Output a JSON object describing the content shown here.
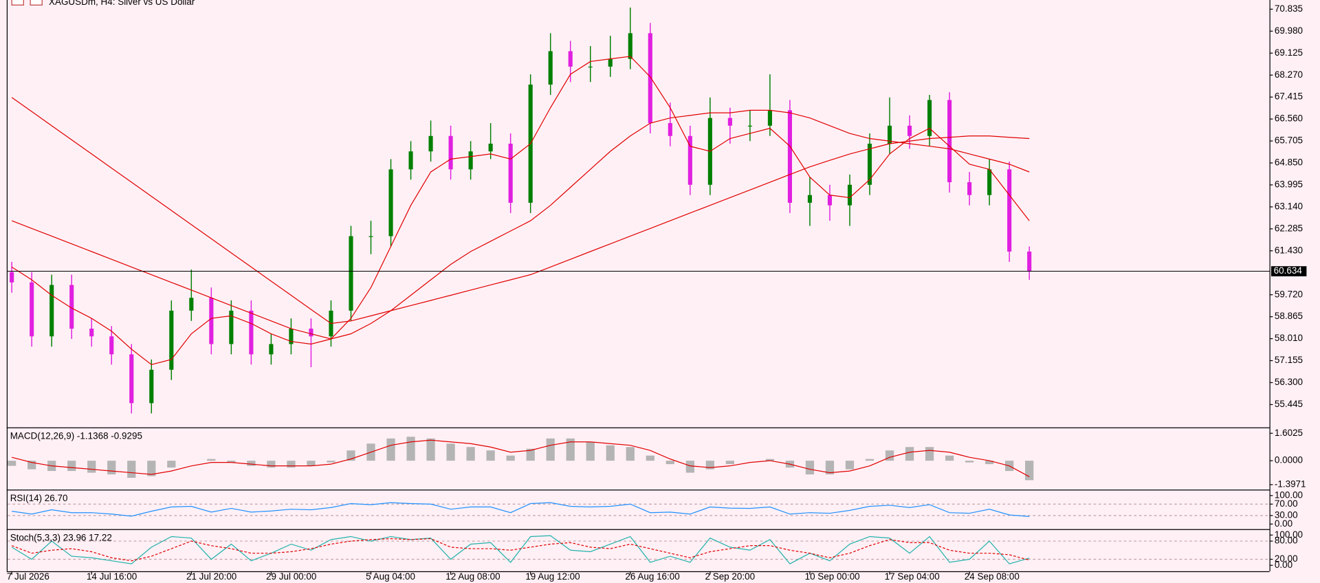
{
  "chart_data": [
    {
      "type": "candlestick",
      "title": "XAGUSDm, H4:  Silver vs US Dollar",
      "categories": [
        "7 Jul 2026",
        null,
        null,
        null,
        "14 Jul 16:00",
        null,
        null,
        null,
        null,
        "21 Jul 20:00",
        null,
        null,
        null,
        "29 Jul 00:00",
        null,
        null,
        null,
        null,
        "5 Aug 04:00",
        null,
        null,
        null,
        "12 Aug 08:00",
        null,
        null,
        null,
        "19 Aug 12:00",
        null,
        null,
        null,
        null,
        "26 Aug 16:00",
        null,
        null,
        null,
        "2 Sep 20:00",
        null,
        null,
        null,
        null,
        "10 Sep 00:00",
        null,
        null,
        null,
        "17 Sep 04:00",
        null,
        null,
        null,
        "24 Sep 08:00",
        null,
        null,
        null
      ],
      "open": [
        60.6,
        60.2,
        58.1,
        60.1,
        58.4,
        58.1,
        57.4,
        55.5,
        56.8,
        59.1,
        59.6,
        57.8,
        59.1,
        57.4,
        57.8,
        58.4,
        58.1,
        59.1,
        62.0,
        62.0,
        64.6,
        65.3,
        65.9,
        64.6,
        65.3,
        65.6,
        63.3,
        67.9,
        69.2,
        68.6,
        68.6,
        68.9,
        69.9,
        66.4,
        65.9,
        64.0,
        66.6,
        66.3,
        66.3,
        66.9,
        63.3,
        63.6,
        63.2,
        64.0,
        65.6,
        66.3,
        65.9,
        67.3,
        64.1,
        63.6,
        64.6,
        61.4
      ],
      "high": [
        61.0,
        60.6,
        60.5,
        60.5,
        58.8,
        58.5,
        57.8,
        57.2,
        59.5,
        60.7,
        60.0,
        59.5,
        59.5,
        58.2,
        58.8,
        58.8,
        59.5,
        62.4,
        62.6,
        65.0,
        65.7,
        66.5,
        66.3,
        65.7,
        66.4,
        66.0,
        68.3,
        69.9,
        69.6,
        69.4,
        69.8,
        70.9,
        70.3,
        67.2,
        66.3,
        67.4,
        67.0,
        66.9,
        68.3,
        67.3,
        64.3,
        64.0,
        64.4,
        66.0,
        67.4,
        66.7,
        67.5,
        67.6,
        64.5,
        65.0,
        64.9,
        61.6
      ],
      "low": [
        59.8,
        57.7,
        57.7,
        58.0,
        57.7,
        57.0,
        55.1,
        55.1,
        56.4,
        58.7,
        57.4,
        57.4,
        57.0,
        57.0,
        57.4,
        56.9,
        57.7,
        58.7,
        61.3,
        61.6,
        64.2,
        64.9,
        64.2,
        64.2,
        65.0,
        62.9,
        62.9,
        67.5,
        68.0,
        68.0,
        68.2,
        68.5,
        66.0,
        65.5,
        63.6,
        63.6,
        65.6,
        65.7,
        65.9,
        62.9,
        62.4,
        62.6,
        62.4,
        63.6,
        65.2,
        65.4,
        65.5,
        63.7,
        63.2,
        63.2,
        61.0,
        60.3
      ],
      "close": [
        60.2,
        58.1,
        60.1,
        58.4,
        58.1,
        57.4,
        55.5,
        56.8,
        59.1,
        59.6,
        57.8,
        59.1,
        57.4,
        57.8,
        58.4,
        58.1,
        59.1,
        62.0,
        62.0,
        64.6,
        65.3,
        65.9,
        64.6,
        65.3,
        65.6,
        63.3,
        67.9,
        69.2,
        68.6,
        68.6,
        68.9,
        69.9,
        66.4,
        65.9,
        64.0,
        66.6,
        66.3,
        66.3,
        66.9,
        63.3,
        63.6,
        63.2,
        64.0,
        65.6,
        66.3,
        65.9,
        67.3,
        64.1,
        63.6,
        64.6,
        61.4,
        60.634
      ],
      "up_color": "#008000",
      "down_color": "#e020e0",
      "overlays": [
        {
          "color": "#e00000",
          "values": [
            60.8,
            60.3,
            59.7,
            59.2,
            58.8,
            58.3,
            57.6,
            57.0,
            57.2,
            58.2,
            58.8,
            58.9,
            58.6,
            58.2,
            57.9,
            57.8,
            58.0,
            58.8,
            60.0,
            61.6,
            63.2,
            64.5,
            65.0,
            65.1,
            65.2,
            65.0,
            65.6,
            67.0,
            68.3,
            68.8,
            68.9,
            69.0,
            68.2,
            67.0,
            65.5,
            65.3,
            65.8,
            66.0,
            66.2,
            65.5,
            64.3,
            63.6,
            63.5,
            64.2,
            65.2,
            65.8,
            66.2,
            65.5,
            64.8,
            64.6,
            63.6,
            62.6
          ]
        },
        {
          "color": "#e00000",
          "values": [
            62.6,
            62.3,
            62.0,
            61.7,
            61.4,
            61.1,
            60.8,
            60.5,
            60.2,
            59.9,
            59.6,
            59.3,
            59.0,
            58.7,
            58.4,
            58.2,
            58.0,
            58.2,
            58.6,
            59.1,
            59.7,
            60.3,
            60.9,
            61.4,
            61.8,
            62.2,
            62.6,
            63.2,
            63.9,
            64.6,
            65.3,
            65.9,
            66.4,
            66.6,
            66.7,
            66.8,
            66.8,
            66.9,
            66.9,
            66.8,
            66.6,
            66.3,
            66.0,
            65.8,
            65.7,
            65.6,
            65.5,
            65.4,
            65.2,
            65.0,
            64.8,
            64.5
          ]
        },
        {
          "color": "#e00000",
          "values": [
            67.4,
            66.85,
            66.3,
            65.75,
            65.2,
            64.65,
            64.1,
            63.55,
            63.0,
            62.45,
            61.9,
            61.35,
            60.8,
            60.25,
            59.7,
            59.15,
            58.6,
            58.7,
            58.9,
            59.1,
            59.3,
            59.5,
            59.7,
            59.9,
            60.1,
            60.3,
            60.5,
            60.8,
            61.1,
            61.4,
            61.7,
            62.0,
            62.3,
            62.6,
            62.9,
            63.2,
            63.5,
            63.8,
            64.1,
            64.4,
            64.7,
            64.95,
            65.2,
            65.4,
            65.6,
            65.7,
            65.8,
            65.85,
            65.9,
            65.9,
            65.85,
            65.8
          ]
        }
      ],
      "current_price": 60.634,
      "ylim": [
        54.59,
        71.16
      ],
      "yticks": [
        70.835,
        {
          "value": 69.98,
          "label": "69.980"
        },
        69.125,
        {
          "value": 68.27,
          "label": "68.270"
        },
        67.415,
        {
          "value": 66.56,
          "label": "66.560"
        },
        65.705,
        {
          "value": 64.85,
          "label": "64.850"
        },
        63.995,
        {
          "value": 63.14,
          "label": "63.140"
        },
        62.285,
        {
          "value": 61.43,
          "label": "61.430"
        },
        {
          "value": 59.72,
          "label": "59.720"
        },
        58.865,
        {
          "value": 58.01,
          "label": "58.010"
        },
        57.155,
        {
          "value": 56.3,
          "label": "56.300"
        },
        55.445
      ]
    },
    {
      "type": "macd",
      "title": "MACD(12,26,9) -1.1368 -0.9295",
      "histogram": {
        "color": "#b4b4b4",
        "values": [
          -0.3,
          -0.5,
          -0.6,
          -0.6,
          -0.7,
          -0.8,
          -1.0,
          -0.9,
          -0.4,
          0.0,
          0.1,
          -0.1,
          -0.3,
          -0.4,
          -0.4,
          -0.3,
          -0.1,
          0.6,
          1.0,
          1.3,
          1.4,
          1.3,
          1.0,
          0.8,
          0.6,
          0.3,
          0.7,
          1.3,
          1.3,
          1.1,
          0.9,
          0.8,
          0.3,
          -0.2,
          -0.7,
          -0.5,
          -0.2,
          0.0,
          0.1,
          -0.4,
          -0.8,
          -0.8,
          -0.5,
          0.1,
          0.6,
          0.8,
          0.8,
          0.3,
          -0.1,
          -0.2,
          -0.6,
          -1.1368
        ]
      },
      "signal": {
        "color": "#e00000",
        "values": [
          0.2,
          -0.1,
          -0.3,
          -0.4,
          -0.5,
          -0.6,
          -0.7,
          -0.8,
          -0.6,
          -0.3,
          -0.1,
          -0.1,
          -0.2,
          -0.3,
          -0.3,
          -0.3,
          -0.2,
          0.1,
          0.5,
          0.9,
          1.1,
          1.2,
          1.1,
          1.0,
          0.8,
          0.5,
          0.6,
          0.9,
          1.1,
          1.1,
          1.0,
          0.9,
          0.6,
          0.1,
          -0.3,
          -0.4,
          -0.3,
          -0.1,
          0.0,
          -0.2,
          -0.5,
          -0.7,
          -0.6,
          -0.3,
          0.2,
          0.5,
          0.6,
          0.5,
          0.2,
          0.0,
          -0.3,
          -0.9295
        ]
      },
      "ylim": [
        -1.59,
        1.85
      ],
      "yticks": [
        1.6025,
        {
          "value": 0,
          "label": "0.0000"
        },
        -1.3971
      ]
    },
    {
      "type": "rsi",
      "title": "RSI(14) 26.70",
      "color": "#1e90ff",
      "values": [
        45,
        35,
        50,
        40,
        40,
        35,
        28,
        45,
        60,
        62,
        42,
        55,
        42,
        46,
        52,
        50,
        58,
        72,
        68,
        75,
        72,
        70,
        52,
        60,
        60,
        40,
        72,
        75,
        62,
        60,
        62,
        70,
        40,
        42,
        35,
        60,
        56,
        55,
        60,
        35,
        40,
        38,
        48,
        62,
        66,
        58,
        68,
        40,
        38,
        52,
        32,
        26.7
      ],
      "levels": [
        70,
        30
      ],
      "ylim": [
        -12,
        115
      ],
      "yticks": [
        {
          "value": 100,
          "label": "100.00"
        },
        {
          "value": 70,
          "label": "70.00"
        },
        {
          "value": 30,
          "label": "30.00"
        },
        {
          "value": 0,
          "label": "0.00"
        }
      ]
    },
    {
      "type": "stochastic",
      "title": "Stoch(5,3,3) 23.96 17.22",
      "series": [
        {
          "color": "#20b2aa",
          "dashed": false,
          "values": [
            60,
            20,
            80,
            30,
            25,
            15,
            5,
            60,
            95,
            90,
            20,
            70,
            15,
            40,
            70,
            50,
            85,
            95,
            80,
            95,
            85,
            90,
            20,
            70,
            75,
            10,
            95,
            98,
            50,
            45,
            70,
            95,
            10,
            30,
            10,
            90,
            60,
            50,
            85,
            5,
            40,
            15,
            70,
            95,
            90,
            40,
            95,
            10,
            20,
            80,
            5,
            23.96
          ]
        },
        {
          "color": "#e00000",
          "dashed": true,
          "values": [
            65,
            40,
            50,
            55,
            45,
            25,
            15,
            30,
            55,
            80,
            65,
            55,
            40,
            40,
            45,
            55,
            70,
            80,
            85,
            88,
            85,
            88,
            60,
            55,
            55,
            50,
            60,
            70,
            75,
            60,
            55,
            70,
            55,
            40,
            25,
            45,
            55,
            65,
            65,
            50,
            40,
            25,
            40,
            65,
            85,
            75,
            75,
            50,
            40,
            40,
            35,
            17.22
          ]
        }
      ],
      "levels": [
        80,
        20
      ],
      "ylim": [
        -16.7,
        113.9
      ],
      "yticks": [
        {
          "value": 100,
          "label": "100.00"
        },
        {
          "value": 80,
          "label": "80.00"
        },
        {
          "value": 20,
          "label": "20.00"
        },
        {
          "value": 0,
          "label": "0.00"
        }
      ]
    }
  ]
}
